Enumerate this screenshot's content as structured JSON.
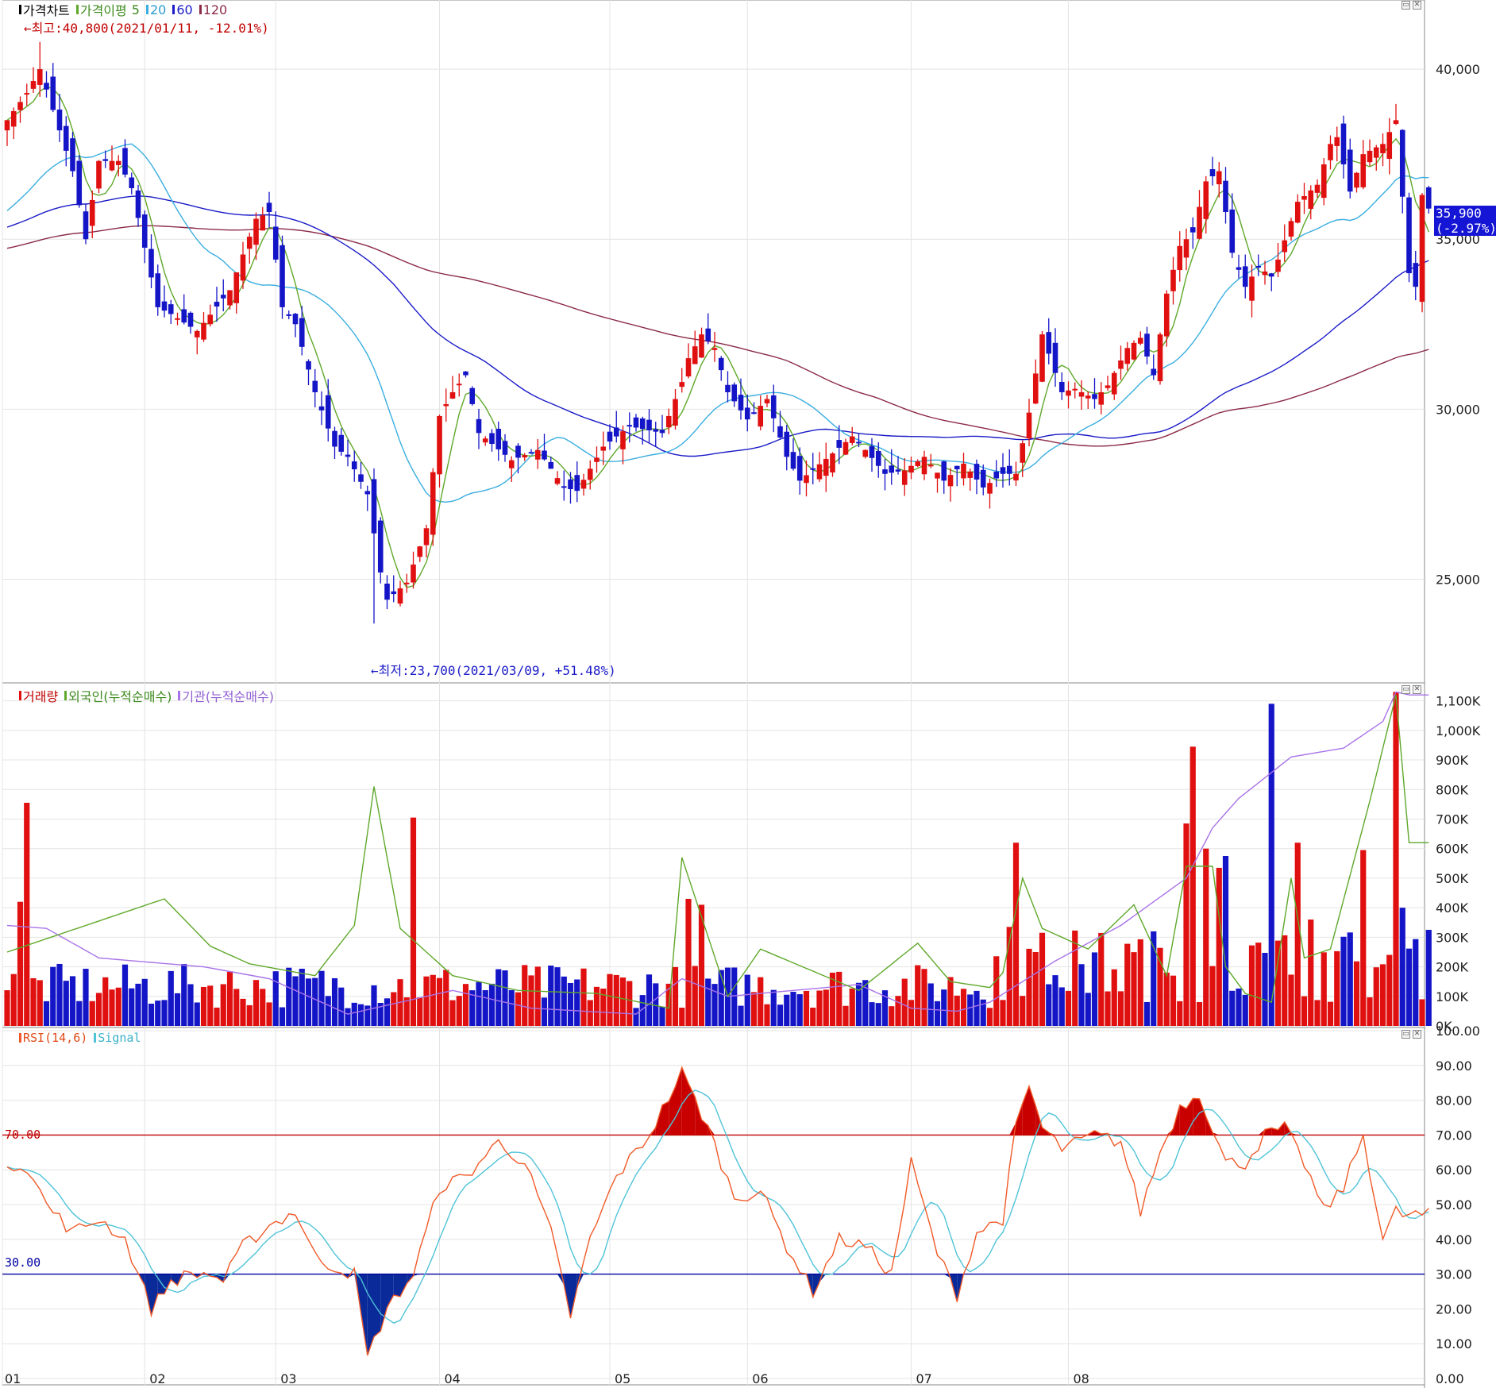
{
  "price_pane": {
    "legend_title": "가격차트",
    "legend_ma": "가격이평",
    "ma_periods": [
      "5",
      "20",
      "60",
      "120"
    ],
    "annotation_high": "←최고:40,800(2021/01/11, -12.01%)",
    "annotation_low": "←최저:23,700(2021/03/09, +51.48%)",
    "current_price": "35,900",
    "current_change": "(-2.97%)"
  },
  "volume_pane": {
    "legend_volume": "거래량",
    "legend_foreign": "외국인(누적순매수)",
    "legend_inst": "기관(누적순매수)"
  },
  "rsi_pane": {
    "legend_rsi": "RSI(14,6)",
    "legend_signal": "Signal",
    "upper_label": "70.00",
    "lower_label": "30.00"
  },
  "window_buttons": {
    "minimize": "▭",
    "close": "✕"
  },
  "colors": {
    "up": "#e01010",
    "down": "#1515c8",
    "ma5": "#5fa82a",
    "ma20": "#3aaee0",
    "ma60": "#1a1ac8",
    "ma120": "#8b2a46",
    "foreign": "#5fa82a",
    "inst": "#a873e8",
    "rsi": "#f05a28",
    "signal": "#4fc3d8",
    "upper": "#c00000",
    "lower": "#0000a0"
  },
  "chart_data": [
    {
      "type": "candlestick",
      "title": "가격차트",
      "series_names": [
        "가격이평 5",
        "20",
        "60",
        "120"
      ],
      "x_ticks": [
        "01",
        "02",
        "03",
        "04",
        "05",
        "06",
        "07",
        "08"
      ],
      "y_ticks": [
        "25,000",
        "30,000",
        "35,000",
        "40,000"
      ],
      "ylim": [
        22000,
        41800
      ],
      "high": {
        "value": 40800,
        "date": "2021/01/11"
      },
      "low": {
        "value": 23700,
        "date": "2021/03/09"
      },
      "last_close": 35900,
      "anchors": [
        [
          0,
          38500
        ],
        [
          3,
          39300
        ],
        [
          5,
          40000
        ],
        [
          7,
          38800
        ],
        [
          10,
          37000
        ],
        [
          12,
          35000
        ],
        [
          14,
          37300
        ],
        [
          17,
          37300
        ],
        [
          19,
          36500
        ],
        [
          23,
          33000
        ],
        [
          25,
          32800
        ],
        [
          29,
          32300
        ],
        [
          34,
          33500
        ],
        [
          38,
          35600
        ],
        [
          40,
          35800
        ],
        [
          42,
          33000
        ],
        [
          44,
          32500
        ],
        [
          47,
          30500
        ],
        [
          50,
          28900
        ],
        [
          52,
          28600
        ],
        [
          55,
          27500
        ],
        [
          57,
          25200
        ],
        [
          58,
          24400
        ],
        [
          61,
          24900
        ],
        [
          64,
          26500
        ],
        [
          66,
          29800
        ],
        [
          68,
          30500
        ],
        [
          70,
          31000
        ],
        [
          72,
          29300
        ],
        [
          77,
          28500
        ],
        [
          81,
          28800
        ],
        [
          85,
          27700
        ],
        [
          87,
          27600
        ],
        [
          91,
          28900
        ],
        [
          95,
          29500
        ],
        [
          100,
          29300
        ],
        [
          103,
          30800
        ],
        [
          104,
          31500
        ],
        [
          106,
          32200
        ],
        [
          108,
          31800
        ],
        [
          110,
          30500
        ],
        [
          113,
          29700
        ],
        [
          116,
          30300
        ],
        [
          119,
          28600
        ],
        [
          121,
          27900
        ],
        [
          126,
          28700
        ],
        [
          129,
          29200
        ],
        [
          131,
          28800
        ],
        [
          134,
          28100
        ],
        [
          137,
          28200
        ],
        [
          140,
          28600
        ],
        [
          143,
          27900
        ],
        [
          146,
          28400
        ],
        [
          149,
          27700
        ],
        [
          152,
          28100
        ],
        [
          154,
          28100
        ],
        [
          156,
          29900
        ],
        [
          158,
          32200
        ],
        [
          161,
          30500
        ],
        [
          163,
          30600
        ],
        [
          166,
          30300
        ],
        [
          168,
          30700
        ],
        [
          171,
          31800
        ],
        [
          173,
          32100
        ],
        [
          175,
          31000
        ],
        [
          177,
          33400
        ],
        [
          179,
          34800
        ],
        [
          181,
          35200
        ],
        [
          183,
          36700
        ],
        [
          185,
          37000
        ],
        [
          187,
          34600
        ],
        [
          189,
          33600
        ],
        [
          191,
          34200
        ],
        [
          193,
          33900
        ],
        [
          194,
          34400
        ],
        [
          197,
          36100
        ],
        [
          200,
          36600
        ],
        [
          202,
          37800
        ],
        [
          203,
          38000
        ],
        [
          205,
          36400
        ],
        [
          207,
          37500
        ],
        [
          210,
          37800
        ],
        [
          212,
          38500
        ],
        [
          214,
          34000
        ],
        [
          215,
          33600
        ],
        [
          216,
          36300
        ],
        [
          217,
          35900
        ]
      ],
      "volume": {
        "ylim": [
          0,
          1150000
        ],
        "y_ticks": [
          "0K",
          "100K",
          "200K",
          "300K",
          "400K",
          "500K",
          "600K",
          "700K",
          "800K",
          "900K",
          "1,000K",
          "1,100K"
        ],
        "spikes": [
          [
            2,
            420000
          ],
          [
            3,
            755000
          ],
          [
            62,
            705000
          ],
          [
            104,
            430000
          ],
          [
            106,
            410000
          ],
          [
            153,
            335000
          ],
          [
            154,
            620000
          ],
          [
            180,
            685000
          ],
          [
            181,
            945000
          ],
          [
            183,
            600000
          ],
          [
            185,
            535000
          ],
          [
            186,
            575000
          ],
          [
            193,
            1090000
          ],
          [
            197,
            620000
          ],
          [
            199,
            360000
          ],
          [
            207,
            595000
          ],
          [
            212,
            1130000
          ],
          [
            213,
            400000
          ]
        ],
        "foreign_anchors": [
          [
            0,
            250000
          ],
          [
            24,
            430000
          ],
          [
            31,
            270000
          ],
          [
            37,
            210000
          ],
          [
            47,
            170000
          ],
          [
            53,
            340000
          ],
          [
            56,
            810000
          ],
          [
            60,
            330000
          ],
          [
            68,
            170000
          ],
          [
            78,
            120000
          ],
          [
            90,
            110000
          ],
          [
            101,
            60000
          ],
          [
            103,
            570000
          ],
          [
            110,
            100000
          ],
          [
            115,
            260000
          ],
          [
            130,
            120000
          ],
          [
            139,
            280000
          ],
          [
            144,
            150000
          ],
          [
            150,
            130000
          ],
          [
            152,
            180000
          ],
          [
            155,
            500000
          ],
          [
            158,
            330000
          ],
          [
            165,
            260000
          ],
          [
            172,
            410000
          ],
          [
            177,
            170000
          ],
          [
            180,
            540000
          ],
          [
            184,
            540000
          ],
          [
            186,
            200000
          ],
          [
            189,
            110000
          ],
          [
            193,
            80000
          ],
          [
            196,
            500000
          ],
          [
            198,
            230000
          ],
          [
            202,
            260000
          ],
          [
            208,
            760000
          ],
          [
            212,
            1120000
          ],
          [
            214,
            620000
          ]
        ],
        "inst_anchors": [
          [
            0,
            340000
          ],
          [
            6,
            330000
          ],
          [
            14,
            230000
          ],
          [
            30,
            200000
          ],
          [
            40,
            160000
          ],
          [
            52,
            40000
          ],
          [
            68,
            120000
          ],
          [
            80,
            60000
          ],
          [
            96,
            40000
          ],
          [
            103,
            160000
          ],
          [
            110,
            100000
          ],
          [
            130,
            140000
          ],
          [
            138,
            60000
          ],
          [
            145,
            50000
          ],
          [
            150,
            80000
          ],
          [
            160,
            220000
          ],
          [
            170,
            340000
          ],
          [
            180,
            500000
          ],
          [
            184,
            670000
          ],
          [
            188,
            770000
          ],
          [
            196,
            910000
          ],
          [
            204,
            940000
          ],
          [
            210,
            1030000
          ],
          [
            212,
            1130000
          ],
          [
            214,
            1120000
          ]
        ]
      },
      "rsi": {
        "ylim": [
          0,
          100
        ],
        "y_ticks": [
          "0.00",
          "10.00",
          "20.00",
          "30.00",
          "40.00",
          "50.00",
          "60.00",
          "70.00",
          "80.00",
          "90.00",
          "100.00"
        ],
        "upper": 70,
        "lower": 30,
        "anchors": [
          [
            0,
            62
          ],
          [
            3,
            61
          ],
          [
            6,
            50
          ],
          [
            10,
            42
          ],
          [
            14,
            46
          ],
          [
            18,
            40
          ],
          [
            22,
            20
          ],
          [
            25,
            28
          ],
          [
            28,
            30
          ],
          [
            31,
            30
          ],
          [
            33,
            28
          ],
          [
            36,
            38
          ],
          [
            40,
            44
          ],
          [
            44,
            48
          ],
          [
            47,
            35
          ],
          [
            50,
            32
          ],
          [
            53,
            30
          ],
          [
            55,
            6
          ],
          [
            58,
            20
          ],
          [
            62,
            30
          ],
          [
            66,
            55
          ],
          [
            70,
            58
          ],
          [
            75,
            68
          ],
          [
            79,
            62
          ],
          [
            83,
            42
          ],
          [
            86,
            18
          ],
          [
            89,
            40
          ],
          [
            93,
            58
          ],
          [
            98,
            70
          ],
          [
            103,
            88
          ],
          [
            107,
            72
          ],
          [
            111,
            52
          ],
          [
            115,
            54
          ],
          [
            119,
            38
          ],
          [
            123,
            25
          ],
          [
            127,
            40
          ],
          [
            131,
            38
          ],
          [
            135,
            30
          ],
          [
            138,
            62
          ],
          [
            142,
            36
          ],
          [
            145,
            24
          ],
          [
            148,
            42
          ],
          [
            152,
            46
          ],
          [
            154,
            72
          ],
          [
            156,
            84
          ],
          [
            158,
            72
          ],
          [
            161,
            66
          ],
          [
            166,
            70
          ],
          [
            170,
            68
          ],
          [
            173,
            48
          ],
          [
            176,
            65
          ],
          [
            179,
            78
          ],
          [
            182,
            82
          ],
          [
            184,
            72
          ],
          [
            186,
            62
          ],
          [
            189,
            62
          ],
          [
            192,
            70
          ],
          [
            195,
            72
          ],
          [
            198,
            62
          ],
          [
            201,
            48
          ],
          [
            204,
            55
          ],
          [
            207,
            70
          ],
          [
            210,
            40
          ],
          [
            212,
            48
          ],
          [
            213,
            47
          ]
        ]
      }
    }
  ]
}
